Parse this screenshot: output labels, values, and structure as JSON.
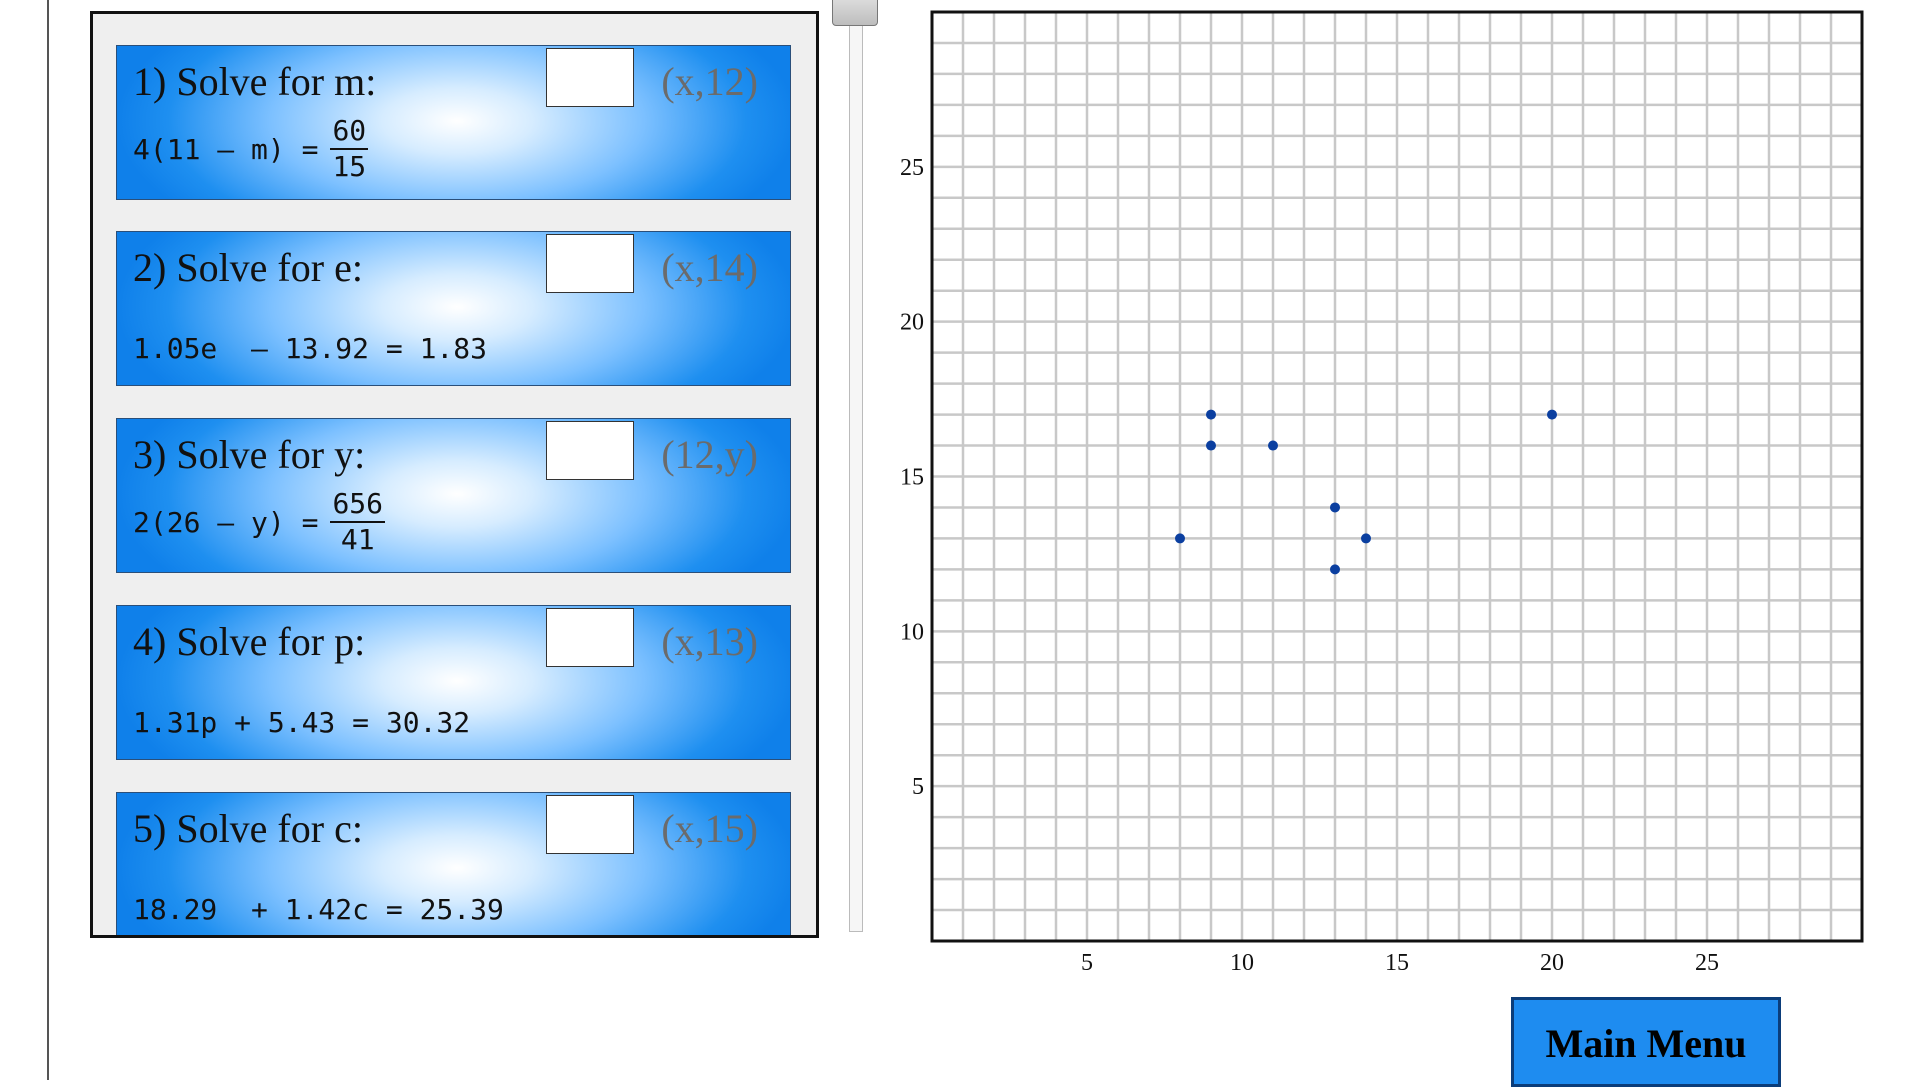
{
  "problems": [
    {
      "title": "1) Solve for m:",
      "hint": "(x,12)",
      "lhs": "4(11 – m) =",
      "numerator": "60",
      "denominator": "15",
      "answer": ""
    },
    {
      "title": "2) Solve for e:",
      "hint": "(x,14)",
      "equation": "1.05e  – 13.92 = 1.83",
      "answer": ""
    },
    {
      "title": "3) Solve for y:",
      "hint": "(12,y)",
      "lhs": "2(26 – y) =",
      "numerator": "656",
      "denominator": "41",
      "answer": ""
    },
    {
      "title": "4) Solve for p:",
      "hint": "(x,13)",
      "equation": "1.31p + 5.43 = 30.32",
      "answer": ""
    },
    {
      "title": "5) Solve for c:",
      "hint": "(x,15)",
      "equation": "18.29  + 1.42c = 25.39",
      "answer": ""
    }
  ],
  "chart_data": {
    "type": "scatter",
    "xlim": [
      0,
      30
    ],
    "ylim": [
      0,
      30
    ],
    "grid": true,
    "x_ticks": [
      "5",
      "10",
      "15",
      "20",
      "25"
    ],
    "y_ticks": [
      "5",
      "10",
      "15",
      "20",
      "25"
    ],
    "point_color": "#0b3fa0",
    "points": [
      {
        "x": 9,
        "y": 17
      },
      {
        "x": 9,
        "y": 16
      },
      {
        "x": 11,
        "y": 16
      },
      {
        "x": 20,
        "y": 17
      },
      {
        "x": 13,
        "y": 14
      },
      {
        "x": 8,
        "y": 13
      },
      {
        "x": 14,
        "y": 13
      },
      {
        "x": 13,
        "y": 12
      }
    ]
  },
  "main_menu": {
    "label": "Main Menu"
  }
}
